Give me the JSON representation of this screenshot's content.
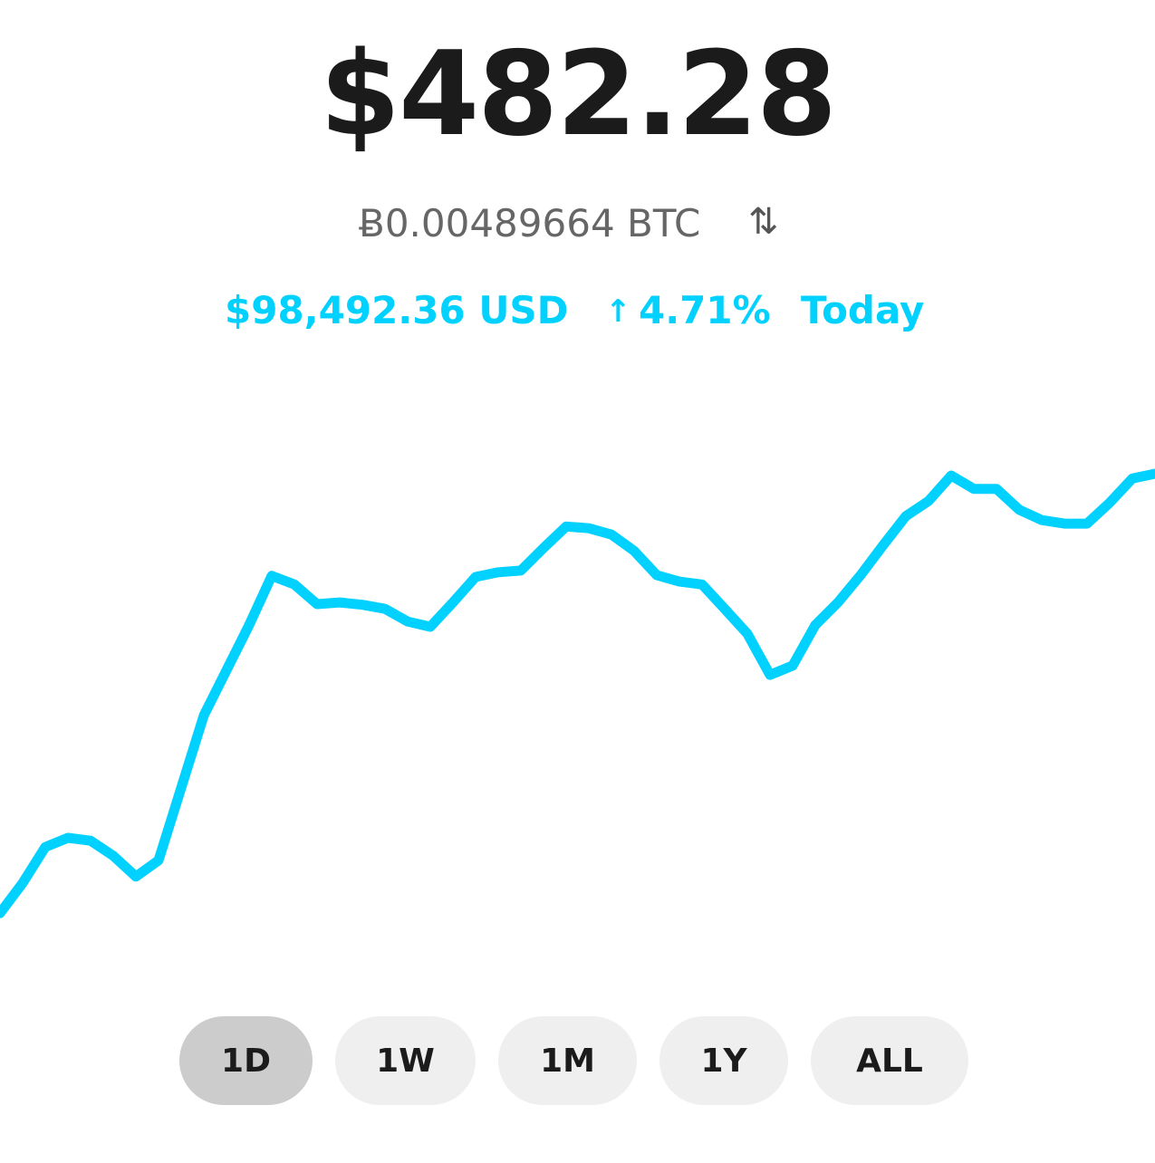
{
  "header": {
    "price": "$482.28",
    "btc_amount": "Ƀ0.00489664 BTC"
  },
  "stats": {
    "usd_price": "$98,492.36 USD",
    "change": "4.71%",
    "period": "Today"
  },
  "chart_data": {
    "type": "line",
    "ylim": [
      0,
      100
    ],
    "series": [
      {
        "color": "#00d1ff",
        "values": [
          8.1,
          13.3,
          19.5,
          21.1,
          20.6,
          18.0,
          14.4,
          17.2,
          29.7,
          42.2,
          50.0,
          57.8,
          66.3,
          64.8,
          61.4,
          61.7,
          61.3,
          60.6,
          58.4,
          57.5,
          61.7,
          66.1,
          66.9,
          67.2,
          71.1,
          74.8,
          74.5,
          73.4,
          70.6,
          66.4,
          65.3,
          64.8,
          60.6,
          56.3,
          49.2,
          50.8,
          57.8,
          61.7,
          66.4,
          71.6,
          76.6,
          79.2,
          83.6,
          81.3,
          81.3,
          77.7,
          75.9,
          75.3,
          75.3,
          78.9,
          83.1,
          83.9
        ]
      }
    ]
  },
  "range_buttons": {
    "options": [
      "1D",
      "1W",
      "1M",
      "1Y",
      "ALL"
    ],
    "selected": "1D"
  }
}
